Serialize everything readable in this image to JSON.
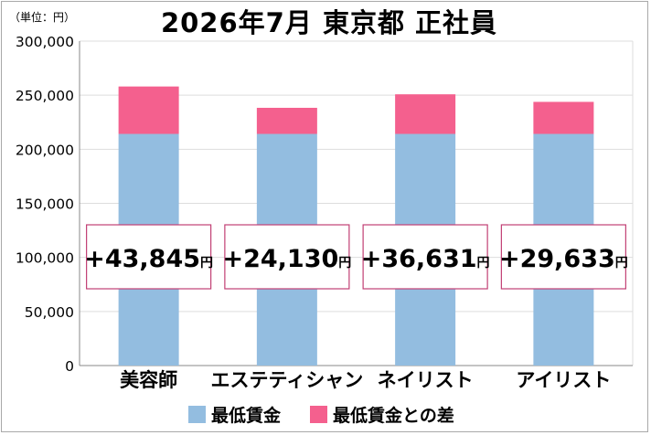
{
  "unit_label": "（単位：円）",
  "title": "2026年7月 東京都 正社員",
  "colors": {
    "base": "#93bde0",
    "diff": "#f4608e",
    "box_border": "#c23f74",
    "grid": "#dddddd"
  },
  "chart_data": {
    "type": "bar",
    "stacked": true,
    "title": "2026年7月 東京都 正社員",
    "categories": [
      "美容師",
      "エステティシャン",
      "ネイリスト",
      "アイリスト"
    ],
    "series": [
      {
        "name": "最低賃金",
        "color": "#93bde0",
        "values": [
          214200,
          214200,
          214200,
          214200
        ]
      },
      {
        "name": "最低賃金との差",
        "color": "#f4608e",
        "values": [
          43845,
          24130,
          36631,
          29633
        ]
      }
    ],
    "diff_labels": [
      {
        "main": "+43,845",
        "unit": "円"
      },
      {
        "main": "+24,130",
        "unit": "円"
      },
      {
        "main": "+36,631",
        "unit": "円"
      },
      {
        "main": "+29,633",
        "unit": "円"
      }
    ],
    "ylim": [
      0,
      300000
    ],
    "yticks": [
      0,
      50000,
      100000,
      150000,
      200000,
      250000,
      300000
    ],
    "ytick_labels": [
      "0",
      "50,000",
      "100,000",
      "150,000",
      "200,000",
      "250,000",
      "300,000"
    ],
    "grid": true,
    "legend_position": "bottom"
  }
}
